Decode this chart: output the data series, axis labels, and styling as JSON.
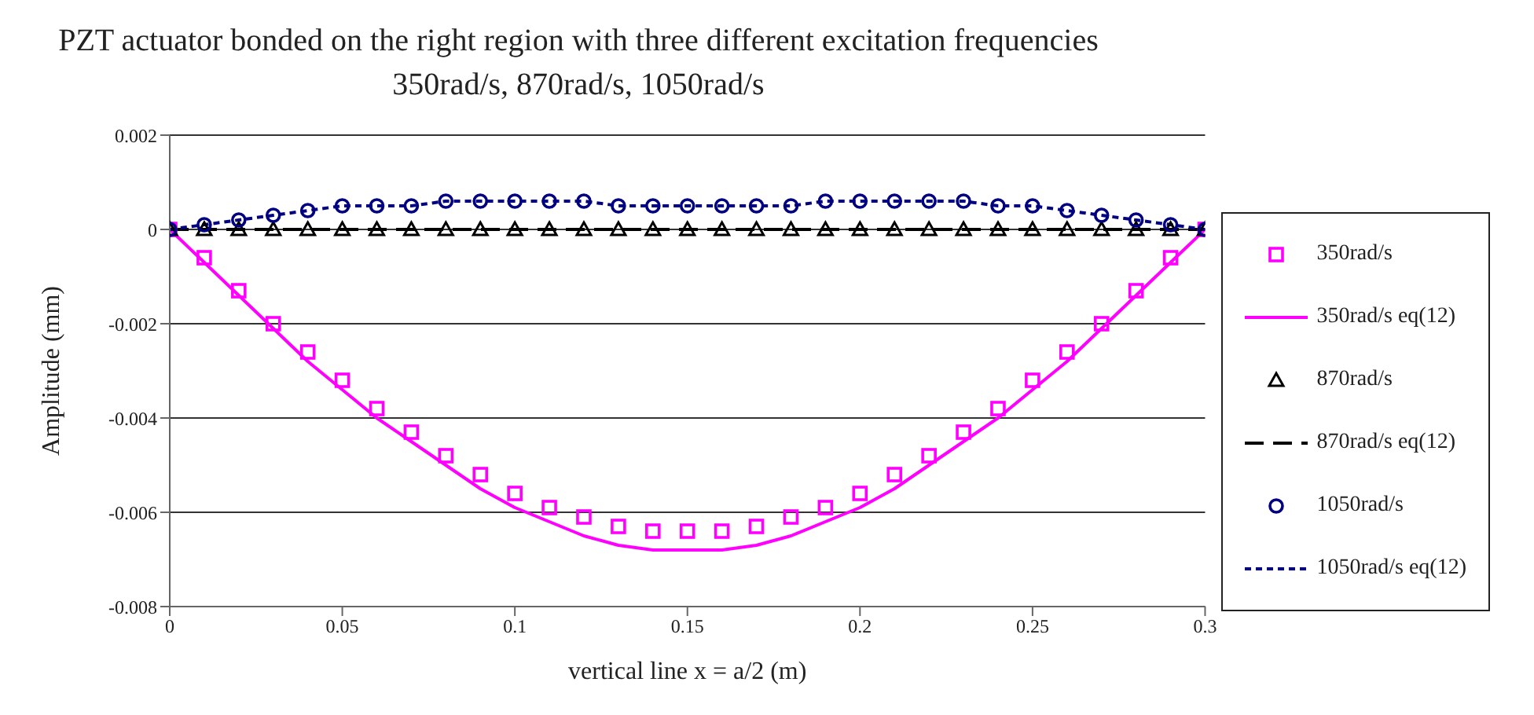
{
  "chart_data": {
    "type": "line",
    "title": "PZT actuator bonded on the right region with three different excitation frequencies 350rad/s, 870rad/s, 1050rad/s",
    "xlabel": "vertical line x = a/2 (m)",
    "ylabel": "Amplitude (mm)",
    "x": [
      0,
      0.01,
      0.02,
      0.03,
      0.04,
      0.05,
      0.06,
      0.07,
      0.08,
      0.09,
      0.1,
      0.11,
      0.12,
      0.13,
      0.14,
      0.15,
      0.16,
      0.17,
      0.18,
      0.19,
      0.2,
      0.21,
      0.22,
      0.23,
      0.24,
      0.25,
      0.26,
      0.27,
      0.28,
      0.29,
      0.3
    ],
    "series": [
      {
        "name": "350rad/s",
        "type": "scatter",
        "marker": "square",
        "color": "#ff00ff",
        "values": [
          0,
          -0.0006,
          -0.0013,
          -0.002,
          -0.0026,
          -0.0032,
          -0.0038,
          -0.0043,
          -0.0048,
          -0.0052,
          -0.0056,
          -0.0059,
          -0.0061,
          -0.0063,
          -0.0064,
          -0.0064,
          -0.0064,
          -0.0063,
          -0.0061,
          -0.0059,
          -0.0056,
          -0.0052,
          -0.0048,
          -0.0043,
          -0.0038,
          -0.0032,
          -0.0026,
          -0.002,
          -0.0013,
          -0.0006,
          0
        ]
      },
      {
        "name": "350rad/s eq(12)",
        "line_style": "solid",
        "color": "#ff00ff",
        "values": [
          0,
          -0.0007,
          -0.0014,
          -0.0021,
          -0.0028,
          -0.0034,
          -0.004,
          -0.0045,
          -0.005,
          -0.0055,
          -0.0059,
          -0.0062,
          -0.0065,
          -0.0067,
          -0.0068,
          -0.0068,
          -0.0068,
          -0.0067,
          -0.0065,
          -0.0062,
          -0.0059,
          -0.0055,
          -0.005,
          -0.0045,
          -0.004,
          -0.0034,
          -0.0028,
          -0.0021,
          -0.0014,
          -0.0007,
          0
        ]
      },
      {
        "name": "870rad/s",
        "type": "scatter",
        "marker": "triangle",
        "color": "#000000",
        "values": [
          0,
          0,
          0,
          0,
          0,
          0,
          0,
          0,
          0,
          0,
          0,
          0,
          0,
          0,
          0,
          0,
          0,
          0,
          0,
          0,
          0,
          0,
          0,
          0,
          0,
          0,
          0,
          0,
          0,
          0,
          0
        ]
      },
      {
        "name": "870rad/s eq(12)",
        "line_style": "dashed",
        "color": "#000000",
        "values": [
          0,
          0,
          0,
          0,
          0,
          0,
          0,
          0,
          0,
          0,
          0,
          0,
          0,
          0,
          0,
          0,
          0,
          0,
          0,
          0,
          0,
          0,
          0,
          0,
          0,
          0,
          0,
          0,
          0,
          0,
          0
        ]
      },
      {
        "name": "1050rad/s",
        "type": "scatter",
        "marker": "circle",
        "color": "#000080",
        "values": [
          0,
          0.0001,
          0.0002,
          0.0003,
          0.0004,
          0.0005,
          0.0005,
          0.0005,
          0.0006,
          0.0006,
          0.0006,
          0.0006,
          0.0006,
          0.0005,
          0.0005,
          0.0005,
          0.0005,
          0.0005,
          0.0005,
          0.0006,
          0.0006,
          0.0006,
          0.0006,
          0.0006,
          0.0005,
          0.0005,
          0.0004,
          0.0003,
          0.0002,
          0.0001,
          0
        ]
      },
      {
        "name": "1050rad/s eq(12)",
        "line_style": "dotted",
        "color": "#000080",
        "values": [
          0,
          0.0001,
          0.0002,
          0.0003,
          0.0004,
          0.0005,
          0.0005,
          0.0005,
          0.0006,
          0.0006,
          0.0006,
          0.0006,
          0.0006,
          0.0005,
          0.0005,
          0.0005,
          0.0005,
          0.0005,
          0.0005,
          0.0006,
          0.0006,
          0.0006,
          0.0006,
          0.0006,
          0.0005,
          0.0005,
          0.0004,
          0.0003,
          0.0002,
          0.0001,
          0
        ]
      }
    ],
    "xlim": [
      0,
      0.3
    ],
    "xticks": [
      0,
      0.05,
      0.1,
      0.15,
      0.2,
      0.25,
      0.3
    ],
    "ylim": [
      -0.008,
      0.002
    ],
    "yticks": [
      -0.008,
      -0.006,
      -0.004,
      -0.002,
      0,
      0.002
    ],
    "grid": "y",
    "legend": "right"
  }
}
